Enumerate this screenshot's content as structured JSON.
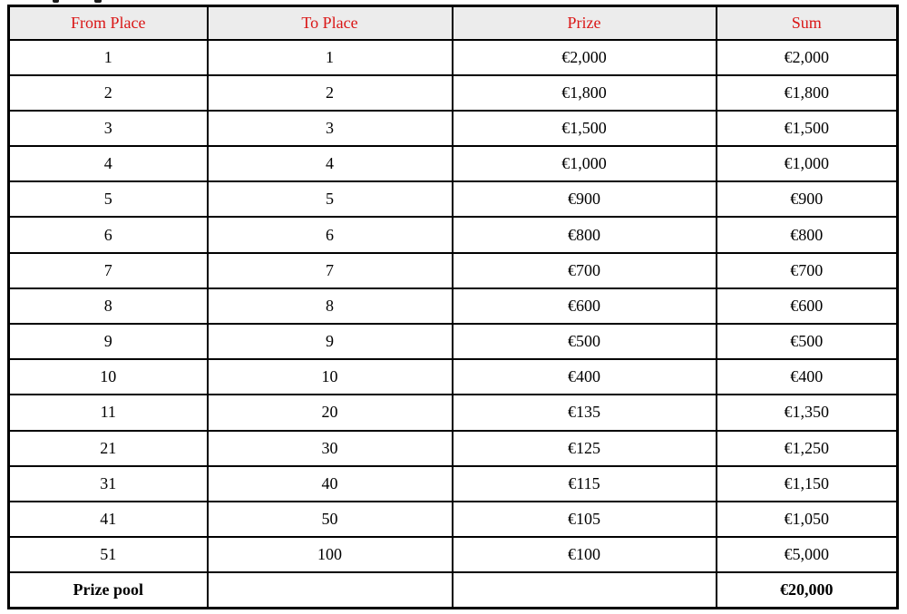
{
  "table": {
    "headers": [
      "From Place",
      "To Place",
      "Prize",
      "Sum"
    ],
    "rows": [
      {
        "from": "1",
        "to": "1",
        "prize": "€2,000",
        "sum": "€2,000"
      },
      {
        "from": "2",
        "to": "2",
        "prize": "€1,800",
        "sum": "€1,800"
      },
      {
        "from": "3",
        "to": "3",
        "prize": "€1,500",
        "sum": "€1,500"
      },
      {
        "from": "4",
        "to": "4",
        "prize": "€1,000",
        "sum": "€1,000"
      },
      {
        "from": "5",
        "to": "5",
        "prize": "€900",
        "sum": "€900"
      },
      {
        "from": "6",
        "to": "6",
        "prize": "€800",
        "sum": "€800"
      },
      {
        "from": "7",
        "to": "7",
        "prize": "€700",
        "sum": "€700"
      },
      {
        "from": "8",
        "to": "8",
        "prize": "€600",
        "sum": "€600"
      },
      {
        "from": "9",
        "to": "9",
        "prize": "€500",
        "sum": "€500"
      },
      {
        "from": "10",
        "to": "10",
        "prize": "€400",
        "sum": "€400"
      },
      {
        "from": "11",
        "to": "20",
        "prize": "€135",
        "sum": "€1,350"
      },
      {
        "from": "21",
        "to": "30",
        "prize": "€125",
        "sum": "€1,250"
      },
      {
        "from": "31",
        "to": "40",
        "prize": "€115",
        "sum": "€1,150"
      },
      {
        "from": "41",
        "to": "50",
        "prize": "€105",
        "sum": "€1,050"
      },
      {
        "from": "51",
        "to": "100",
        "prize": "€100",
        "sum": "€5,000"
      }
    ],
    "footer": {
      "label": "Prize pool",
      "to": "",
      "prize": "",
      "sum": "€20,000"
    },
    "colors": {
      "header_text": "#da1717",
      "header_bg": "#ececec",
      "border": "#000000",
      "body_text": "#000000"
    }
  }
}
